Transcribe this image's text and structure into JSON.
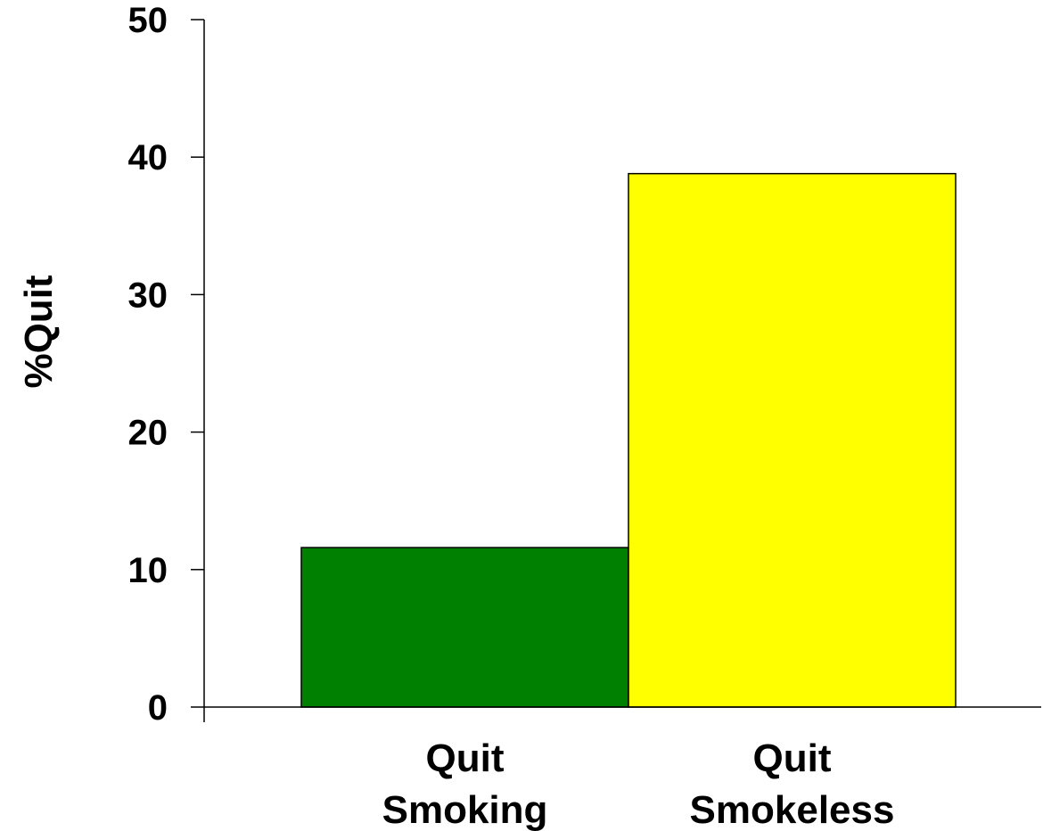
{
  "chart_data": {
    "type": "bar",
    "title": "",
    "xlabel": "",
    "ylabel": "%Quit",
    "ylim": [
      0,
      50
    ],
    "yticks": [
      0,
      10,
      20,
      30,
      40,
      50
    ],
    "grid": false,
    "categories": [
      [
        "Quit",
        "Smoking"
      ],
      [
        "Quit",
        "Smokeless"
      ]
    ],
    "values": [
      11.6,
      38.8
    ],
    "colors": [
      "#008000",
      "#ffff00"
    ]
  }
}
